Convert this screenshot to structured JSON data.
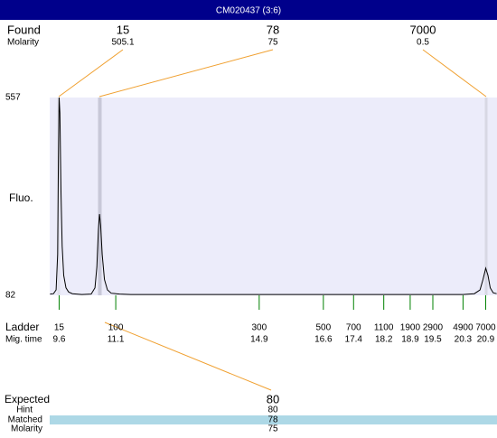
{
  "title": "CM020437 (3:6)",
  "found": {
    "label": "Found",
    "molarity_label": "Molarity",
    "peaks": [
      {
        "size": 15,
        "molarity": 505.1
      },
      {
        "size": 78,
        "molarity": 75
      },
      {
        "size": 7000,
        "molarity": 0.5
      }
    ]
  },
  "chart_data": {
    "type": "line",
    "y_label": "Fluo.",
    "ylim": [
      82,
      557
    ],
    "yticks": [
      82,
      557
    ],
    "xlim": [
      9.35,
      21.2
    ],
    "x": [
      9.36,
      9.45,
      9.52,
      9.56,
      9.58,
      9.6,
      9.62,
      9.65,
      9.68,
      9.72,
      9.78,
      9.85,
      9.95,
      10.2,
      10.45,
      10.55,
      10.6,
      10.64,
      10.67,
      10.7,
      10.74,
      10.8,
      10.88,
      10.98,
      11.2,
      11.5,
      13,
      14.9,
      16.6,
      18,
      19.5,
      20.3,
      20.6,
      20.75,
      20.83,
      20.9,
      20.96,
      21.02,
      21.1,
      21.19
    ],
    "series": [
      {
        "color": "#000000",
        "values": [
          85,
          86,
          95,
          180,
          400,
          557,
          520,
          330,
          200,
          130,
          100,
          90,
          86,
          84,
          85,
          100,
          150,
          240,
          277,
          250,
          180,
          120,
          95,
          87,
          85,
          84,
          84,
          84,
          84,
          84,
          84,
          84,
          86,
          95,
          120,
          147,
          130,
          100,
          88,
          86
        ]
      }
    ]
  },
  "ladder": {
    "label": "Ladder",
    "time_label": "Mig. time",
    "sizes": [
      15,
      100,
      300,
      500,
      700,
      1100,
      1900,
      2900,
      4900,
      7000
    ],
    "times": [
      9.6,
      11.1,
      14.9,
      16.6,
      17.4,
      18.2,
      18.9,
      19.5,
      20.3,
      20.9
    ]
  },
  "expected": {
    "label": "Expected",
    "value": 80,
    "hint_label": "Hint",
    "hint": 80,
    "matched_label": "Matched",
    "matched": 78,
    "molarity_label": "Molarity",
    "molarity": 75
  }
}
